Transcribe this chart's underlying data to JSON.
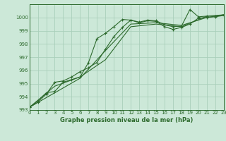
{
  "bg_color": "#cce8d8",
  "grid_color": "#aacfbb",
  "line_color": "#2d6a2d",
  "title": "Graphe pression niveau de la mer (hPa)",
  "ylim": [
    993,
    1001
  ],
  "xlim": [
    0,
    23
  ],
  "yticks": [
    993,
    994,
    995,
    996,
    997,
    998,
    999,
    1000
  ],
  "xticks": [
    0,
    1,
    2,
    3,
    4,
    5,
    6,
    7,
    8,
    9,
    10,
    11,
    12,
    13,
    14,
    15,
    16,
    17,
    18,
    19,
    20,
    21,
    22,
    23
  ],
  "series": [
    {
      "x": [
        0,
        1,
        2,
        3,
        4,
        5,
        6,
        7,
        8,
        9,
        10,
        11,
        12,
        13,
        14,
        15,
        16,
        17,
        18,
        19,
        20,
        21,
        22,
        23
      ],
      "y": [
        993.2,
        993.7,
        994.3,
        994.4,
        995.1,
        995.3,
        995.5,
        996.6,
        998.4,
        998.8,
        999.3,
        999.85,
        999.8,
        999.65,
        999.8,
        999.75,
        999.45,
        999.3,
        999.35,
        1000.6,
        1000.05,
        1000.1,
        1000.1,
        1000.2
      ],
      "marker": "+"
    },
    {
      "x": [
        0,
        1,
        2,
        3,
        4,
        5,
        6,
        7,
        8,
        9,
        10,
        11,
        12,
        13,
        14,
        15,
        16,
        17,
        18,
        19,
        20,
        21,
        22,
        23
      ],
      "y": [
        993.2,
        993.6,
        994.2,
        995.1,
        995.2,
        995.5,
        995.9,
        996.2,
        996.6,
        997.6,
        998.55,
        999.25,
        999.8,
        999.6,
        999.75,
        999.7,
        999.3,
        999.1,
        999.25,
        999.5,
        999.95,
        1000.0,
        1000.05,
        1000.15
      ],
      "marker": "+"
    },
    {
      "x": [
        0,
        3,
        6,
        9,
        12,
        15,
        18,
        21,
        23
      ],
      "y": [
        993.2,
        994.3,
        995.4,
        997.5,
        999.5,
        999.6,
        999.4,
        1000.0,
        1000.2
      ],
      "marker": null
    },
    {
      "x": [
        0,
        3,
        6,
        9,
        12,
        15,
        18,
        21,
        23
      ],
      "y": [
        993.2,
        994.8,
        995.5,
        996.8,
        999.3,
        999.5,
        999.3,
        1000.1,
        1000.2
      ],
      "marker": null
    }
  ]
}
